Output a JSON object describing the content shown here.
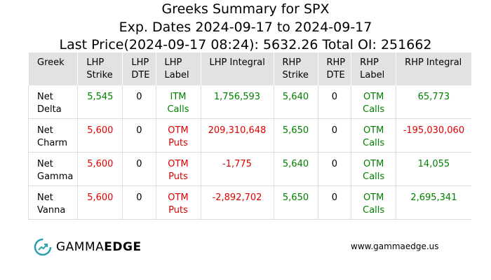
{
  "header": {
    "title_lines": [
      "Greeks Summary for SPX",
      "Exp. Dates 2024-09-17 to 2024-09-17",
      "Last Price(2024-09-17 08:24): 5632.26 Total OI: 251662"
    ]
  },
  "table": {
    "headers": [
      "Greek",
      "LHP Strike",
      "LHP DTE",
      "LHP Label",
      "LHP Integral",
      "RHP Strike",
      "RHP DTE",
      "RHP Label",
      "RHP Integral"
    ],
    "rows": [
      [
        "Net Delta",
        "5,545",
        "0",
        "ITM Calls",
        "1,756,593",
        "5,640",
        "0",
        "OTM Calls",
        "65,773"
      ],
      [
        "Net Charm",
        "5,600",
        "0",
        "OTM Puts",
        "209,310,648",
        "5,650",
        "0",
        "OTM Calls",
        "-195,030,060"
      ],
      [
        "Net Gamma",
        "5,600",
        "0",
        "OTM Puts",
        "-1,775",
        "5,640",
        "0",
        "OTM Calls",
        "14,055"
      ],
      [
        "Net Vanna",
        "5,600",
        "0",
        "OTM Puts",
        "-2,892,702",
        "5,650",
        "0",
        "OTM Calls",
        "2,695,341"
      ]
    ],
    "colors": [
      [
        "#000000",
        "#008000",
        "#000000",
        "#008000",
        "#008000",
        "#008000",
        "#000000",
        "#008000",
        "#008000"
      ],
      [
        "#000000",
        "#e00000",
        "#000000",
        "#e00000",
        "#e00000",
        "#008000",
        "#000000",
        "#008000",
        "#e00000"
      ],
      [
        "#000000",
        "#e00000",
        "#000000",
        "#e00000",
        "#e00000",
        "#008000",
        "#000000",
        "#008000",
        "#008000"
      ],
      [
        "#000000",
        "#e00000",
        "#000000",
        "#e00000",
        "#e00000",
        "#008000",
        "#000000",
        "#008000",
        "#008000"
      ]
    ]
  },
  "footer": {
    "logo_light": "GAMMA",
    "logo_bold": "EDGE",
    "url": "www.gammaedge.us"
  }
}
